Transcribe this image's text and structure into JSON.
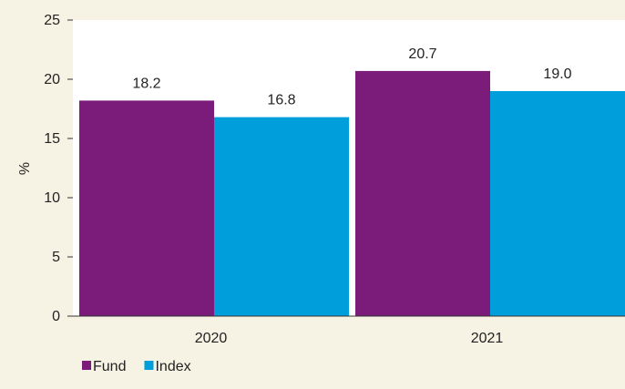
{
  "chart_data": {
    "type": "bar",
    "categories": [
      "2020",
      "2021"
    ],
    "series": [
      {
        "name": "Fund",
        "values": [
          18.2,
          20.7
        ],
        "labels": [
          "18.2",
          "20.7"
        ],
        "color": "#7b1c7b"
      },
      {
        "name": "Index",
        "values": [
          16.8,
          19.0
        ],
        "labels": [
          "16.8",
          "19.0"
        ],
        "color": "#009fdb"
      }
    ],
    "title": "",
    "xlabel": "",
    "ylabel": "%",
    "ylim": [
      0,
      25
    ],
    "yticks": [
      "0",
      "5",
      "10",
      "15",
      "20",
      "25"
    ],
    "grid": false,
    "legend": "bottom-left",
    "colors": {
      "page_background": "#f7f3e4",
      "plot_background": "#ffffff",
      "axis": "#333333"
    }
  }
}
